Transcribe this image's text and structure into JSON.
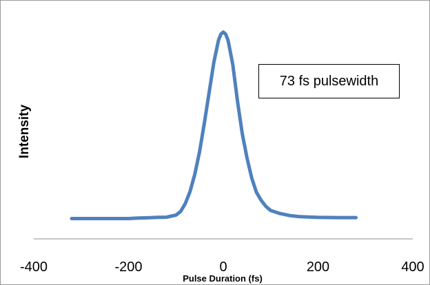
{
  "chart_data": {
    "type": "line",
    "title": "",
    "xlabel": "Pulse Duration (fs)",
    "ylabel": "Intensity",
    "xlim": [
      -400,
      400
    ],
    "ylim": [
      0,
      1.1
    ],
    "x_ticks": [
      -400,
      -200,
      0,
      200,
      400
    ],
    "x_tick_labels": [
      "-400",
      "-200",
      "0",
      "200",
      "400"
    ],
    "grid": false,
    "legend": "none",
    "annotation": "73 fs pulsewidth",
    "series": [
      {
        "color": "#4f81bd",
        "x": [
          -320,
          -280,
          -240,
          -200,
          -180,
          -160,
          -140,
          -120,
          -100,
          -90,
          -80,
          -70,
          -60,
          -50,
          -40,
          -30,
          -20,
          -10,
          -5,
          0,
          5,
          10,
          20,
          30,
          40,
          50,
          60,
          70,
          80,
          90,
          100,
          120,
          140,
          160,
          180,
          200,
          240,
          280
        ],
        "y": [
          0.1,
          0.1,
          0.1,
          0.1,
          0.103,
          0.104,
          0.106,
          0.107,
          0.117,
          0.135,
          0.175,
          0.235,
          0.32,
          0.43,
          0.57,
          0.72,
          0.87,
          0.98,
          1.01,
          1.02,
          1.01,
          0.98,
          0.86,
          0.68,
          0.52,
          0.4,
          0.3,
          0.23,
          0.19,
          0.16,
          0.14,
          0.125,
          0.115,
          0.11,
          0.108,
          0.106,
          0.105,
          0.105
        ]
      }
    ]
  }
}
